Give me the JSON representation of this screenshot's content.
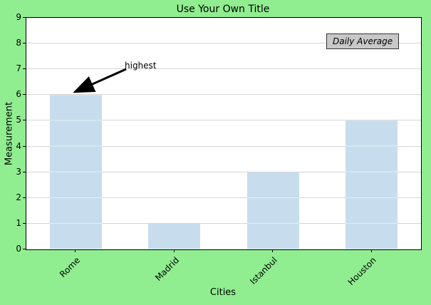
{
  "chart_data": {
    "type": "bar",
    "title": "Use Your Own Title",
    "xlabel": "Cities",
    "ylabel": "Measurement",
    "categories": [
      "Rome",
      "Madrid",
      "Istanbul",
      "Houston"
    ],
    "values": [
      6,
      1,
      3,
      5
    ],
    "ylim": [
      0,
      9
    ],
    "yticks": [
      0,
      1,
      2,
      3,
      4,
      5,
      6,
      7,
      8,
      9
    ],
    "grid": true,
    "bar_color": "#1f77b4",
    "figure_bg": "#90ee90",
    "axes_bg": "#ffffff",
    "annotations": [
      {
        "text": "highest",
        "category": "Rome",
        "value": 6
      }
    ],
    "text_box": {
      "text": "Daily Average",
      "style": "italic",
      "bg": "#c8c8c8"
    }
  }
}
